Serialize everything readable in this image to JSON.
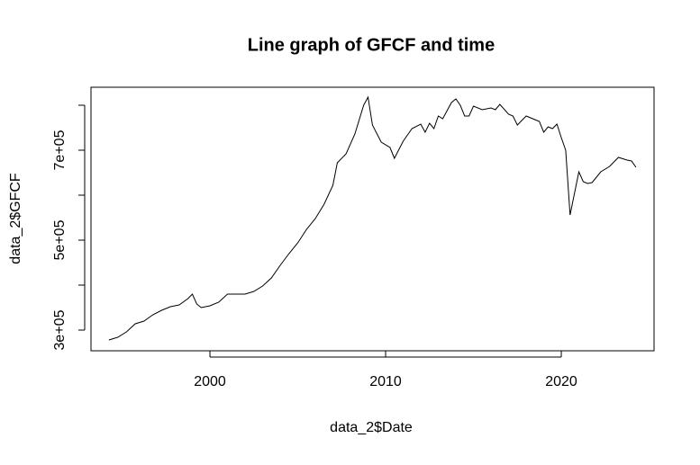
{
  "chart_data": {
    "type": "line",
    "title": "Line graph of GFCF and time",
    "x_label": "data_2$Date",
    "y_label": "data_2$GFCF",
    "xlim": [
      1993.23,
      2025.28
    ],
    "ylim": [
      254000,
      840000
    ],
    "xticks": [
      2000,
      2010,
      2020
    ],
    "yticks": [
      {
        "value": 300000,
        "label": "3e+05"
      },
      {
        "value": 400000,
        "label": null
      },
      {
        "value": 500000,
        "label": "5e+05"
      },
      {
        "value": 600000,
        "label": null
      },
      {
        "value": 700000,
        "label": "7e+05"
      },
      {
        "value": 800000,
        "label": null
      }
    ],
    "series": [
      {
        "name": null,
        "color": "#000000",
        "x": [
          1994.25,
          1994.75,
          1995.25,
          1995.75,
          1996.25,
          1996.75,
          1997.25,
          1997.75,
          1998.25,
          1998.75,
          1999.0,
          1999.25,
          1999.5,
          2000.0,
          2000.5,
          2001.0,
          2001.5,
          2002.0,
          2002.5,
          2003.0,
          2003.5,
          2004.0,
          2004.5,
          2005.0,
          2005.5,
          2006.0,
          2006.5,
          2007.0,
          2007.25,
          2007.75,
          2008.25,
          2008.75,
          2009.0,
          2009.25,
          2009.75,
          2010.25,
          2010.5,
          2011.0,
          2011.5,
          2012.0,
          2012.25,
          2012.5,
          2012.75,
          2013.0,
          2013.25,
          2013.75,
          2014.0,
          2014.25,
          2014.5,
          2014.75,
          2015.0,
          2015.5,
          2016.0,
          2016.25,
          2016.5,
          2017.0,
          2017.25,
          2017.5,
          2018.0,
          2018.5,
          2018.75,
          2019.0,
          2019.25,
          2019.5,
          2019.75,
          2020.0,
          2020.25,
          2020.5,
          2021.0,
          2021.25,
          2021.5,
          2021.75,
          2022.25,
          2022.75,
          2023.25,
          2023.75,
          2024.0,
          2024.25
        ],
        "values": [
          278000,
          284000,
          296000,
          314000,
          320000,
          334000,
          344000,
          352000,
          356000,
          370000,
          380000,
          358000,
          350000,
          354000,
          362000,
          380000,
          380000,
          380000,
          386000,
          398000,
          416000,
          444000,
          470000,
          494000,
          524000,
          548000,
          580000,
          622000,
          672000,
          692000,
          736000,
          800000,
          818000,
          756000,
          718000,
          706000,
          682000,
          720000,
          748000,
          758000,
          740000,
          760000,
          748000,
          776000,
          770000,
          806000,
          814000,
          800000,
          776000,
          776000,
          798000,
          790000,
          794000,
          790000,
          802000,
          780000,
          776000,
          756000,
          776000,
          768000,
          764000,
          740000,
          752000,
          748000,
          758000,
          728000,
          700000,
          556000,
          652000,
          630000,
          626000,
          628000,
          652000,
          664000,
          684000,
          678000,
          676000,
          662000
        ]
      }
    ]
  }
}
